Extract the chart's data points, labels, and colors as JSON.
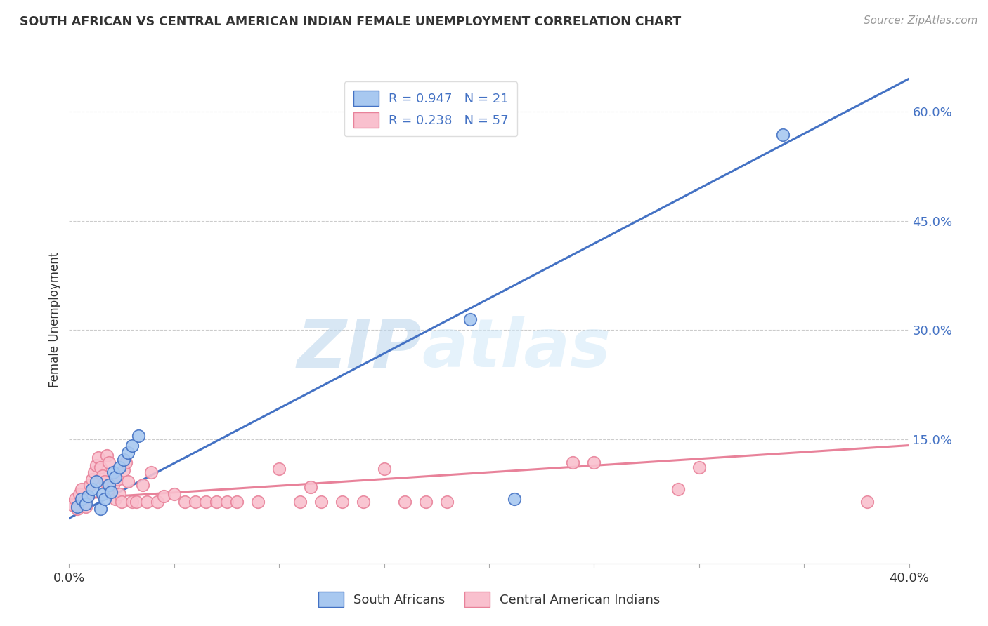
{
  "title": "SOUTH AFRICAN VS CENTRAL AMERICAN INDIAN FEMALE UNEMPLOYMENT CORRELATION CHART",
  "source": "Source: ZipAtlas.com",
  "ylabel": "Female Unemployment",
  "right_yticks": [
    0.0,
    0.15,
    0.3,
    0.45,
    0.6
  ],
  "right_ytick_labels": [
    "",
    "15.0%",
    "30.0%",
    "45.0%",
    "60.0%"
  ],
  "xmin": 0.0,
  "xmax": 0.4,
  "ymin": -0.02,
  "ymax": 0.65,
  "south_african_color": "#A8C8F0",
  "central_american_color": "#F9C0CE",
  "south_african_edge_color": "#4472C4",
  "central_american_edge_color": "#E8829A",
  "south_african_line_color": "#4472C4",
  "central_american_line_color": "#E8829A",
  "legend_label1": "R = 0.947   N = 21",
  "legend_label2": "R = 0.238   N = 57",
  "watermark_zip": "ZIP",
  "watermark_atlas": "atlas",
  "south_african_points": [
    [
      0.004,
      0.058
    ],
    [
      0.006,
      0.068
    ],
    [
      0.008,
      0.062
    ],
    [
      0.009,
      0.072
    ],
    [
      0.011,
      0.082
    ],
    [
      0.013,
      0.092
    ],
    [
      0.015,
      0.055
    ],
    [
      0.016,
      0.075
    ],
    [
      0.017,
      0.068
    ],
    [
      0.019,
      0.088
    ],
    [
      0.02,
      0.078
    ],
    [
      0.021,
      0.105
    ],
    [
      0.022,
      0.098
    ],
    [
      0.024,
      0.112
    ],
    [
      0.026,
      0.122
    ],
    [
      0.028,
      0.132
    ],
    [
      0.03,
      0.142
    ],
    [
      0.033,
      0.155
    ],
    [
      0.191,
      0.315
    ],
    [
      0.212,
      0.068
    ],
    [
      0.34,
      0.568
    ]
  ],
  "central_american_points": [
    [
      0.002,
      0.06
    ],
    [
      0.003,
      0.068
    ],
    [
      0.004,
      0.055
    ],
    [
      0.005,
      0.075
    ],
    [
      0.006,
      0.082
    ],
    [
      0.007,
      0.065
    ],
    [
      0.008,
      0.058
    ],
    [
      0.009,
      0.072
    ],
    [
      0.01,
      0.088
    ],
    [
      0.011,
      0.095
    ],
    [
      0.012,
      0.105
    ],
    [
      0.013,
      0.115
    ],
    [
      0.014,
      0.125
    ],
    [
      0.015,
      0.112
    ],
    [
      0.016,
      0.1
    ],
    [
      0.017,
      0.092
    ],
    [
      0.018,
      0.128
    ],
    [
      0.019,
      0.118
    ],
    [
      0.02,
      0.078
    ],
    [
      0.021,
      0.088
    ],
    [
      0.022,
      0.068
    ],
    [
      0.023,
      0.095
    ],
    [
      0.024,
      0.075
    ],
    [
      0.025,
      0.065
    ],
    [
      0.026,
      0.108
    ],
    [
      0.027,
      0.118
    ],
    [
      0.028,
      0.092
    ],
    [
      0.03,
      0.065
    ],
    [
      0.032,
      0.065
    ],
    [
      0.035,
      0.088
    ],
    [
      0.037,
      0.065
    ],
    [
      0.039,
      0.105
    ],
    [
      0.042,
      0.065
    ],
    [
      0.045,
      0.072
    ],
    [
      0.05,
      0.075
    ],
    [
      0.055,
      0.065
    ],
    [
      0.06,
      0.065
    ],
    [
      0.065,
      0.065
    ],
    [
      0.07,
      0.065
    ],
    [
      0.075,
      0.065
    ],
    [
      0.08,
      0.065
    ],
    [
      0.09,
      0.065
    ],
    [
      0.1,
      0.11
    ],
    [
      0.11,
      0.065
    ],
    [
      0.115,
      0.085
    ],
    [
      0.12,
      0.065
    ],
    [
      0.13,
      0.065
    ],
    [
      0.14,
      0.065
    ],
    [
      0.15,
      0.11
    ],
    [
      0.16,
      0.065
    ],
    [
      0.17,
      0.065
    ],
    [
      0.18,
      0.065
    ],
    [
      0.24,
      0.118
    ],
    [
      0.25,
      0.118
    ],
    [
      0.29,
      0.082
    ],
    [
      0.3,
      0.112
    ],
    [
      0.38,
      0.065
    ]
  ],
  "sa_line": [
    0.0,
    0.4,
    0.042,
    0.645
  ],
  "ca_line": [
    0.0,
    0.4,
    0.068,
    0.142
  ],
  "grid_color": "#CCCCCC",
  "title_color": "#333333",
  "source_color": "#999999",
  "axis_color": "#4472C4",
  "bottom_label_color": "#333333",
  "watermark_color": "#C8DCF0",
  "legend_text_color": "#4472C4"
}
